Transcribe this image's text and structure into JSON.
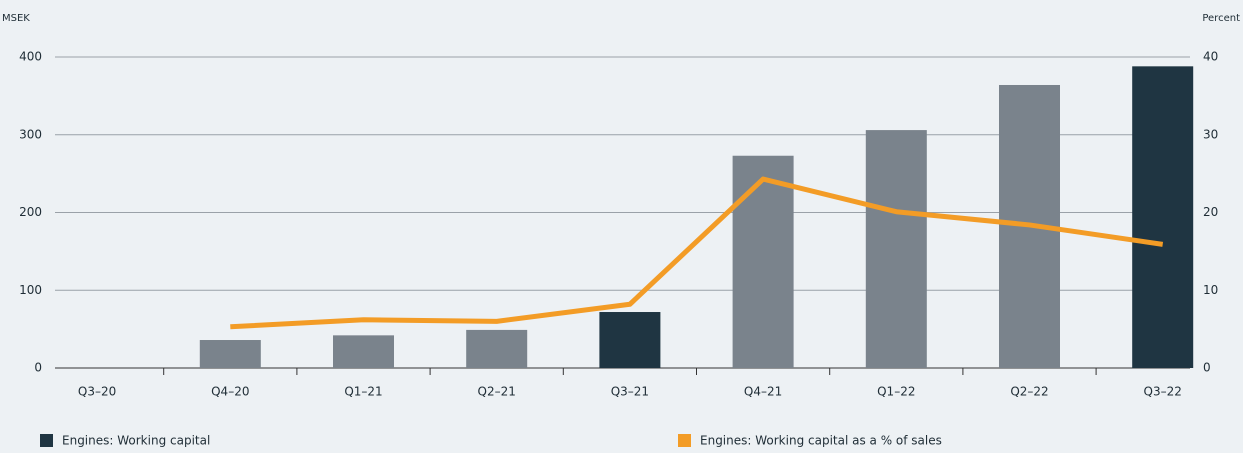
{
  "chart_data": {
    "type": "bar_line",
    "y_label": "MSEK",
    "y2_label": "Percent",
    "categories": [
      "Q3–20",
      "Q4–20",
      "Q1–21",
      "Q2–21",
      "Q3–21",
      "Q4–21",
      "Q1–22",
      "Q2–22",
      "Q3–22"
    ],
    "series": [
      {
        "name": "Engines: Working capital",
        "type": "bar",
        "color": "#1f3542",
        "colors": [
          "#7a838c",
          "#7a838c",
          "#7a838c",
          "#7a838c",
          "#1f3542",
          "#7a838c",
          "#7a838c",
          "#7a838c",
          "#1f3542"
        ],
        "values": [
          null,
          36,
          42,
          49,
          72,
          273,
          306,
          364,
          388
        ]
      },
      {
        "name": "Engines: Working capital as a % of sales",
        "type": "line",
        "axis": "y2",
        "color": "#f39c26",
        "values": [
          null,
          5.3,
          6.2,
          6.0,
          8.2,
          24.3,
          20.1,
          18.4,
          15.9
        ]
      }
    ],
    "ylim": [
      0,
      400
    ],
    "yticks": [
      0,
      100,
      200,
      300,
      400
    ],
    "y2lim": [
      0,
      40
    ],
    "y2ticks": [
      0,
      10,
      20,
      30,
      40
    ],
    "grid": true
  }
}
